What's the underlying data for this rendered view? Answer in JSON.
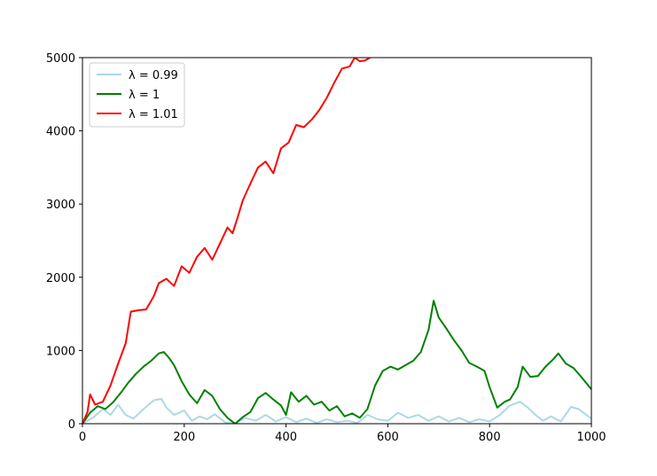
{
  "chart_data": {
    "type": "line",
    "title": "",
    "xlabel": "",
    "ylabel": "",
    "xlim": [
      0,
      1000
    ],
    "ylim": [
      0,
      5000
    ],
    "x_ticks": [
      "0",
      "200",
      "400",
      "600",
      "800",
      "1000"
    ],
    "y_ticks": [
      "0",
      "1000",
      "2000",
      "3000",
      "4000",
      "5000"
    ],
    "grid": false,
    "legend_position": "top-left",
    "series": [
      {
        "name": "λ = 0.99",
        "color": "#add8e6",
        "points": [
          [
            0,
            0
          ],
          [
            20,
            80
          ],
          [
            40,
            200
          ],
          [
            55,
            120
          ],
          [
            70,
            260
          ],
          [
            85,
            120
          ],
          [
            100,
            70
          ],
          [
            120,
            200
          ],
          [
            140,
            320
          ],
          [
            155,
            340
          ],
          [
            165,
            220
          ],
          [
            180,
            120
          ],
          [
            200,
            180
          ],
          [
            215,
            40
          ],
          [
            230,
            100
          ],
          [
            245,
            60
          ],
          [
            260,
            130
          ],
          [
            280,
            20
          ],
          [
            300,
            0
          ],
          [
            320,
            80
          ],
          [
            340,
            40
          ],
          [
            360,
            120
          ],
          [
            380,
            30
          ],
          [
            400,
            90
          ],
          [
            420,
            20
          ],
          [
            440,
            70
          ],
          [
            460,
            10
          ],
          [
            480,
            60
          ],
          [
            500,
            20
          ],
          [
            520,
            40
          ],
          [
            540,
            10
          ],
          [
            560,
            120
          ],
          [
            580,
            60
          ],
          [
            600,
            40
          ],
          [
            620,
            150
          ],
          [
            640,
            80
          ],
          [
            660,
            120
          ],
          [
            680,
            40
          ],
          [
            700,
            100
          ],
          [
            720,
            30
          ],
          [
            740,
            80
          ],
          [
            760,
            20
          ],
          [
            780,
            60
          ],
          [
            800,
            30
          ],
          [
            820,
            120
          ],
          [
            840,
            250
          ],
          [
            860,
            300
          ],
          [
            875,
            220
          ],
          [
            890,
            120
          ],
          [
            905,
            40
          ],
          [
            920,
            100
          ],
          [
            940,
            30
          ],
          [
            960,
            230
          ],
          [
            975,
            200
          ],
          [
            990,
            120
          ],
          [
            1000,
            70
          ]
        ]
      },
      {
        "name": "λ = 1",
        "color": "#008000",
        "points": [
          [
            0,
            0
          ],
          [
            15,
            150
          ],
          [
            30,
            240
          ],
          [
            45,
            200
          ],
          [
            60,
            290
          ],
          [
            75,
            420
          ],
          [
            90,
            560
          ],
          [
            105,
            680
          ],
          [
            120,
            780
          ],
          [
            135,
            860
          ],
          [
            150,
            960
          ],
          [
            160,
            980
          ],
          [
            170,
            900
          ],
          [
            180,
            800
          ],
          [
            195,
            580
          ],
          [
            210,
            400
          ],
          [
            225,
            280
          ],
          [
            240,
            460
          ],
          [
            255,
            380
          ],
          [
            270,
            200
          ],
          [
            285,
            80
          ],
          [
            300,
            0
          ],
          [
            315,
            90
          ],
          [
            330,
            160
          ],
          [
            345,
            350
          ],
          [
            360,
            420
          ],
          [
            375,
            330
          ],
          [
            390,
            250
          ],
          [
            400,
            120
          ],
          [
            410,
            430
          ],
          [
            425,
            300
          ],
          [
            440,
            380
          ],
          [
            455,
            260
          ],
          [
            470,
            300
          ],
          [
            485,
            180
          ],
          [
            500,
            240
          ],
          [
            515,
            100
          ],
          [
            530,
            140
          ],
          [
            545,
            80
          ],
          [
            560,
            200
          ],
          [
            575,
            520
          ],
          [
            590,
            720
          ],
          [
            605,
            780
          ],
          [
            620,
            740
          ],
          [
            635,
            800
          ],
          [
            650,
            860
          ],
          [
            665,
            980
          ],
          [
            680,
            1280
          ],
          [
            690,
            1680
          ],
          [
            700,
            1450
          ],
          [
            715,
            1300
          ],
          [
            730,
            1140
          ],
          [
            745,
            1000
          ],
          [
            760,
            830
          ],
          [
            775,
            780
          ],
          [
            790,
            720
          ],
          [
            800,
            500
          ],
          [
            815,
            220
          ],
          [
            830,
            300
          ],
          [
            840,
            330
          ],
          [
            855,
            500
          ],
          [
            865,
            780
          ],
          [
            880,
            640
          ],
          [
            895,
            650
          ],
          [
            910,
            780
          ],
          [
            925,
            880
          ],
          [
            935,
            960
          ],
          [
            950,
            820
          ],
          [
            965,
            760
          ],
          [
            980,
            640
          ],
          [
            1000,
            470
          ]
        ]
      },
      {
        "name": "λ = 1.01",
        "color": "#ff0000",
        "points": [
          [
            0,
            0
          ],
          [
            10,
            160
          ],
          [
            15,
            400
          ],
          [
            25,
            260
          ],
          [
            40,
            300
          ],
          [
            55,
            520
          ],
          [
            70,
            820
          ],
          [
            85,
            1100
          ],
          [
            95,
            1530
          ],
          [
            110,
            1550
          ],
          [
            125,
            1560
          ],
          [
            140,
            1740
          ],
          [
            150,
            1920
          ],
          [
            165,
            1980
          ],
          [
            180,
            1880
          ],
          [
            195,
            2150
          ],
          [
            210,
            2060
          ],
          [
            225,
            2280
          ],
          [
            240,
            2400
          ],
          [
            255,
            2240
          ],
          [
            270,
            2460
          ],
          [
            285,
            2680
          ],
          [
            295,
            2600
          ],
          [
            305,
            2820
          ],
          [
            315,
            3050
          ],
          [
            330,
            3280
          ],
          [
            345,
            3500
          ],
          [
            360,
            3580
          ],
          [
            375,
            3420
          ],
          [
            390,
            3760
          ],
          [
            405,
            3840
          ],
          [
            420,
            4080
          ],
          [
            435,
            4050
          ],
          [
            450,
            4150
          ],
          [
            465,
            4280
          ],
          [
            480,
            4450
          ],
          [
            495,
            4660
          ],
          [
            510,
            4850
          ],
          [
            525,
            4880
          ],
          [
            535,
            5000
          ],
          [
            545,
            4950
          ],
          [
            555,
            4960
          ],
          [
            565,
            5000
          ]
        ]
      }
    ]
  }
}
